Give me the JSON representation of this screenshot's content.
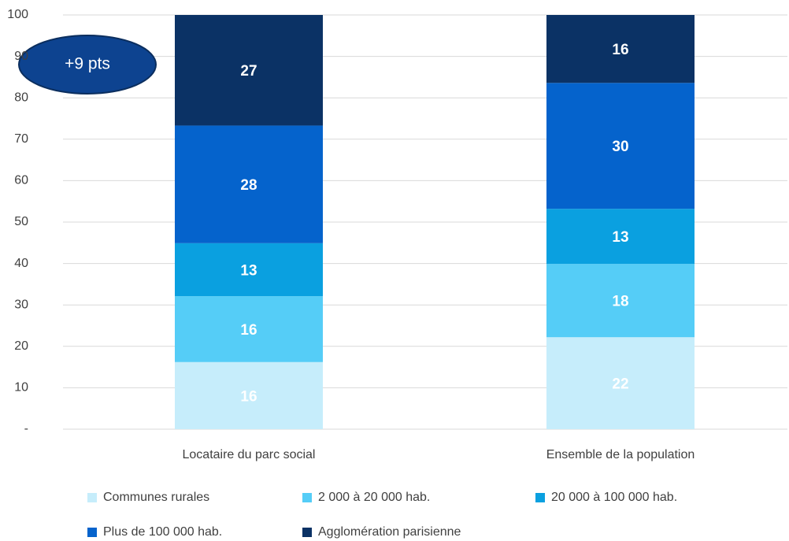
{
  "chart_data": {
    "type": "bar",
    "stacked": true,
    "categories": [
      "Locataire du parc social",
      "Ensemble de la population"
    ],
    "series": [
      {
        "name": "Communes rurales",
        "color": "#c6edfb",
        "values": [
          16.2,
          22.2
        ],
        "value_labels": [
          "16",
          "22"
        ]
      },
      {
        "name": "2 000 à 20 000 hab.",
        "color": "#55cdf7",
        "values": [
          15.9,
          17.7
        ],
        "value_labels": [
          "16",
          "18"
        ]
      },
      {
        "name": "20 000 à 100 000 hab.",
        "color": "#0aa0e0",
        "values": [
          12.8,
          13.3
        ],
        "value_labels": [
          "13",
          "13"
        ]
      },
      {
        "name": "Plus de 100 000 hab.",
        "color": "#0563cc",
        "values": [
          28.4,
          30.4
        ],
        "value_labels": [
          "28",
          "30"
        ]
      },
      {
        "name": "Agglomération parisienne",
        "color": "#0b3265",
        "values": [
          26.7,
          16.4
        ],
        "value_labels": [
          "27",
          "16"
        ]
      }
    ],
    "ylim": [
      0,
      100
    ],
    "yticks": [
      {
        "value": 0,
        "label": "-"
      },
      10,
      20,
      30,
      40,
      50,
      60,
      70,
      80,
      90,
      100
    ],
    "grid": true,
    "annotations": [
      "+9 pts"
    ]
  }
}
